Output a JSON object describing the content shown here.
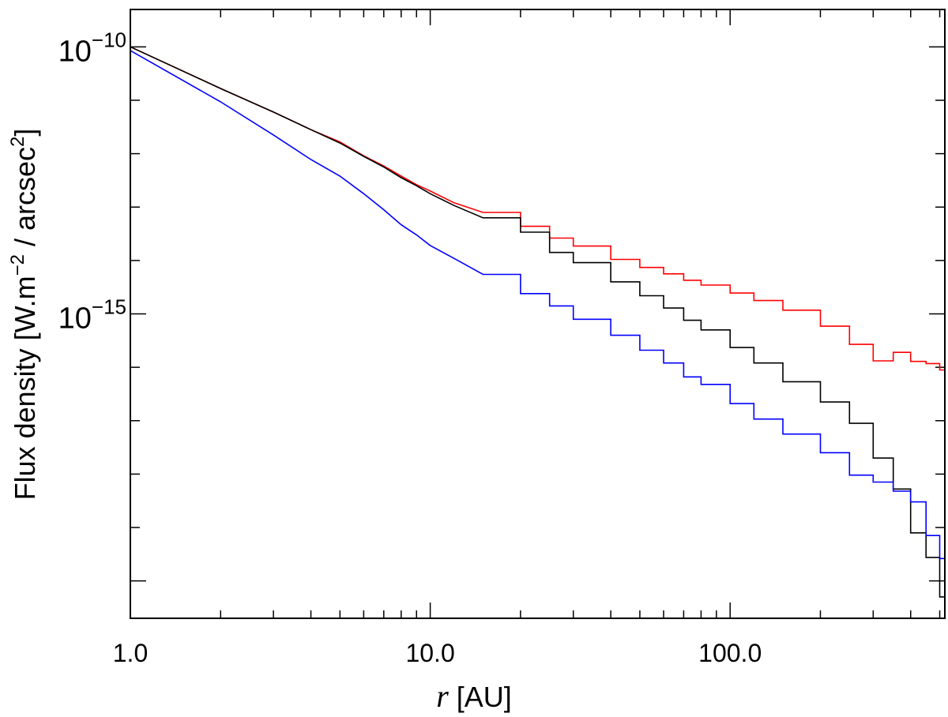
{
  "chart_data": {
    "type": "line",
    "title": "",
    "xlabel_var": "r",
    "xlabel_unit": " [AU]",
    "ylabel_main": "Flux density [W.m",
    "ylabel_exp1": "−2",
    "ylabel_mid": " / arcsec",
    "ylabel_exp2": "2",
    "ylabel_end": "]",
    "x_scale": "log",
    "y_scale": "log",
    "xlim": [
      1.0,
      520
    ],
    "ylim_log10": [
      -20.7,
      -9.3
    ],
    "grid": false,
    "x_ticks": [
      {
        "value": 1.0,
        "label": "1.0"
      },
      {
        "value": 10.0,
        "label": "10.0"
      },
      {
        "value": 100.0,
        "label": "100.0"
      }
    ],
    "y_ticks": [
      {
        "log10": -10,
        "base": "10",
        "exp": "−10"
      },
      {
        "log10": -15,
        "base": "10",
        "exp": "−15"
      }
    ],
    "series": [
      {
        "color": "#ff0000",
        "x": [
          1,
          2,
          3,
          4,
          5,
          6,
          7,
          8,
          9,
          10,
          12,
          15,
          20,
          25,
          30,
          40,
          50,
          60,
          70,
          80,
          100,
          120,
          150,
          200,
          250,
          300,
          350,
          400,
          450,
          500,
          520
        ],
        "log10y": [
          -10.0,
          -10.78,
          -11.22,
          -11.55,
          -11.78,
          -12.04,
          -12.23,
          -12.42,
          -12.58,
          -12.7,
          -12.92,
          -13.1,
          -13.36,
          -13.58,
          -13.73,
          -13.98,
          -14.13,
          -14.25,
          -14.37,
          -14.46,
          -14.61,
          -14.75,
          -14.93,
          -15.23,
          -15.57,
          -15.88,
          -15.72,
          -15.89,
          -15.93,
          -16.05,
          -16.1
        ]
      },
      {
        "color": "#000000",
        "x": [
          1,
          2,
          3,
          4,
          5,
          6,
          7,
          8,
          9,
          10,
          12,
          15,
          20,
          25,
          30,
          40,
          50,
          60,
          70,
          80,
          100,
          120,
          150,
          200,
          250,
          300,
          350,
          400,
          450,
          500,
          520
        ],
        "log10y": [
          -10.0,
          -10.78,
          -11.22,
          -11.55,
          -11.8,
          -12.05,
          -12.25,
          -12.45,
          -12.6,
          -12.75,
          -12.97,
          -13.2,
          -13.47,
          -13.85,
          -14.04,
          -14.4,
          -14.66,
          -14.89,
          -15.12,
          -15.3,
          -15.63,
          -15.92,
          -16.27,
          -16.65,
          -17.05,
          -17.7,
          -18.28,
          -19.1,
          -19.56,
          -20.3,
          -20.6
        ]
      },
      {
        "color": "#0000ff",
        "x": [
          1,
          2,
          3,
          4,
          5,
          6,
          7,
          8,
          9,
          10,
          12,
          15,
          20,
          25,
          30,
          40,
          50,
          60,
          70,
          80,
          100,
          120,
          150,
          200,
          250,
          300,
          350,
          400,
          450,
          500,
          520
        ],
        "log10y": [
          -10.07,
          -11.03,
          -11.65,
          -12.11,
          -12.42,
          -12.75,
          -13.05,
          -13.33,
          -13.52,
          -13.72,
          -13.96,
          -14.26,
          -14.62,
          -14.85,
          -15.1,
          -15.4,
          -15.68,
          -15.92,
          -16.18,
          -16.32,
          -16.68,
          -16.97,
          -17.25,
          -17.6,
          -18.02,
          -18.15,
          -18.32,
          -18.52,
          -19.15,
          -19.58,
          -20.6
        ]
      }
    ]
  }
}
